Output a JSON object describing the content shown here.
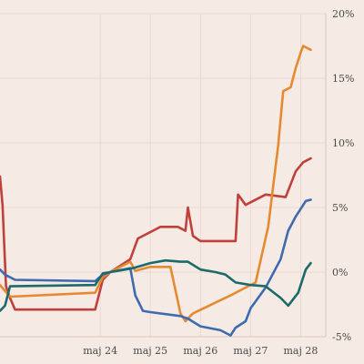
{
  "chart_data": {
    "type": "line",
    "title": "",
    "xlabel": "",
    "ylabel": "",
    "x_tick_labels": [
      "maj 24",
      "maj 25",
      "maj 26",
      "maj 27",
      "maj 28"
    ],
    "x_tick_positions": [
      24,
      25,
      26,
      27,
      28
    ],
    "x_range": [
      22.0,
      28.5
    ],
    "y_tick_labels": [
      "20%",
      "15%",
      "10%",
      "5%",
      "0%",
      "-5%"
    ],
    "y_tick_values": [
      20,
      15,
      10,
      5,
      0,
      -5
    ],
    "ylim": [
      -5,
      20
    ],
    "grid": true,
    "legend": "none",
    "series": [
      {
        "color": "#c0403c",
        "points": [
          [
            22.0,
            7.4
          ],
          [
            22.05,
            5.2
          ],
          [
            22.12,
            -1.1
          ],
          [
            22.2,
            -2.0
          ],
          [
            22.3,
            -2.9
          ],
          [
            23.9,
            -2.9
          ],
          [
            24.05,
            -0.6
          ],
          [
            24.2,
            0.0
          ],
          [
            24.6,
            1.0
          ],
          [
            24.75,
            2.6
          ],
          [
            25.05,
            3.2
          ],
          [
            25.2,
            3.5
          ],
          [
            25.55,
            3.5
          ],
          [
            25.7,
            3.2
          ],
          [
            25.75,
            5.0
          ],
          [
            25.85,
            2.8
          ],
          [
            26.0,
            2.4
          ],
          [
            26.7,
            2.4
          ],
          [
            26.75,
            6.0
          ],
          [
            26.9,
            5.2
          ],
          [
            27.3,
            6.0
          ],
          [
            27.7,
            5.8
          ],
          [
            27.9,
            7.8
          ],
          [
            28.05,
            8.5
          ],
          [
            28.2,
            8.8
          ]
        ]
      },
      {
        "color": "#e58a2e",
        "points": [
          [
            22.0,
            -1.0
          ],
          [
            22.2,
            -1.9
          ],
          [
            23.9,
            -1.6
          ],
          [
            24.05,
            -0.4
          ],
          [
            24.2,
            0.0
          ],
          [
            24.6,
            0.8
          ],
          [
            24.7,
            0.1
          ],
          [
            25.0,
            0.4
          ],
          [
            25.4,
            0.4
          ],
          [
            25.6,
            -3.2
          ],
          [
            25.7,
            -3.8
          ],
          [
            25.85,
            -3.2
          ],
          [
            26.6,
            -1.8
          ],
          [
            26.9,
            -1.2
          ],
          [
            27.1,
            -0.8
          ],
          [
            27.35,
            3.5
          ],
          [
            27.55,
            9.8
          ],
          [
            27.65,
            14.0
          ],
          [
            27.8,
            14.3
          ],
          [
            27.9,
            15.8
          ],
          [
            28.0,
            17.0
          ],
          [
            28.05,
            17.5
          ],
          [
            28.2,
            17.2
          ]
        ]
      },
      {
        "color": "#3e6ab0",
        "points": [
          [
            22.0,
            0.2
          ],
          [
            22.1,
            -0.2
          ],
          [
            22.3,
            -0.6
          ],
          [
            23.9,
            -0.7
          ],
          [
            24.05,
            -0.2
          ],
          [
            24.2,
            0.0
          ],
          [
            24.6,
            0.3
          ],
          [
            24.7,
            -1.8
          ],
          [
            24.85,
            -3.0
          ],
          [
            25.0,
            -3.1
          ],
          [
            25.6,
            -3.4
          ],
          [
            25.75,
            -3.6
          ],
          [
            26.0,
            -4.2
          ],
          [
            26.4,
            -4.5
          ],
          [
            26.6,
            -4.9
          ],
          [
            26.7,
            -4.3
          ],
          [
            26.9,
            -3.8
          ],
          [
            27.0,
            -2.8
          ],
          [
            27.3,
            -1.2
          ],
          [
            27.6,
            1.0
          ],
          [
            27.75,
            3.2
          ],
          [
            27.9,
            4.3
          ],
          [
            28.1,
            5.5
          ],
          [
            28.2,
            5.6
          ]
        ]
      },
      {
        "color": "#1a6b6a",
        "points": [
          [
            22.0,
            -3.0
          ],
          [
            22.1,
            -2.6
          ],
          [
            22.2,
            -1.1
          ],
          [
            23.9,
            -1.0
          ],
          [
            24.05,
            -0.1
          ],
          [
            24.2,
            0.0
          ],
          [
            24.5,
            0.2
          ],
          [
            24.65,
            0.3
          ],
          [
            25.0,
            0.7
          ],
          [
            25.3,
            0.9
          ],
          [
            25.6,
            0.8
          ],
          [
            25.75,
            0.8
          ],
          [
            26.0,
            0.2
          ],
          [
            26.3,
            0.0
          ],
          [
            26.5,
            -0.2
          ],
          [
            26.7,
            -0.8
          ],
          [
            27.0,
            -1.0
          ],
          [
            27.3,
            -1.1
          ],
          [
            27.6,
            -2.0
          ],
          [
            27.75,
            -2.6
          ],
          [
            27.95,
            -1.6
          ],
          [
            28.1,
            0.2
          ],
          [
            28.2,
            0.7
          ]
        ]
      }
    ]
  }
}
